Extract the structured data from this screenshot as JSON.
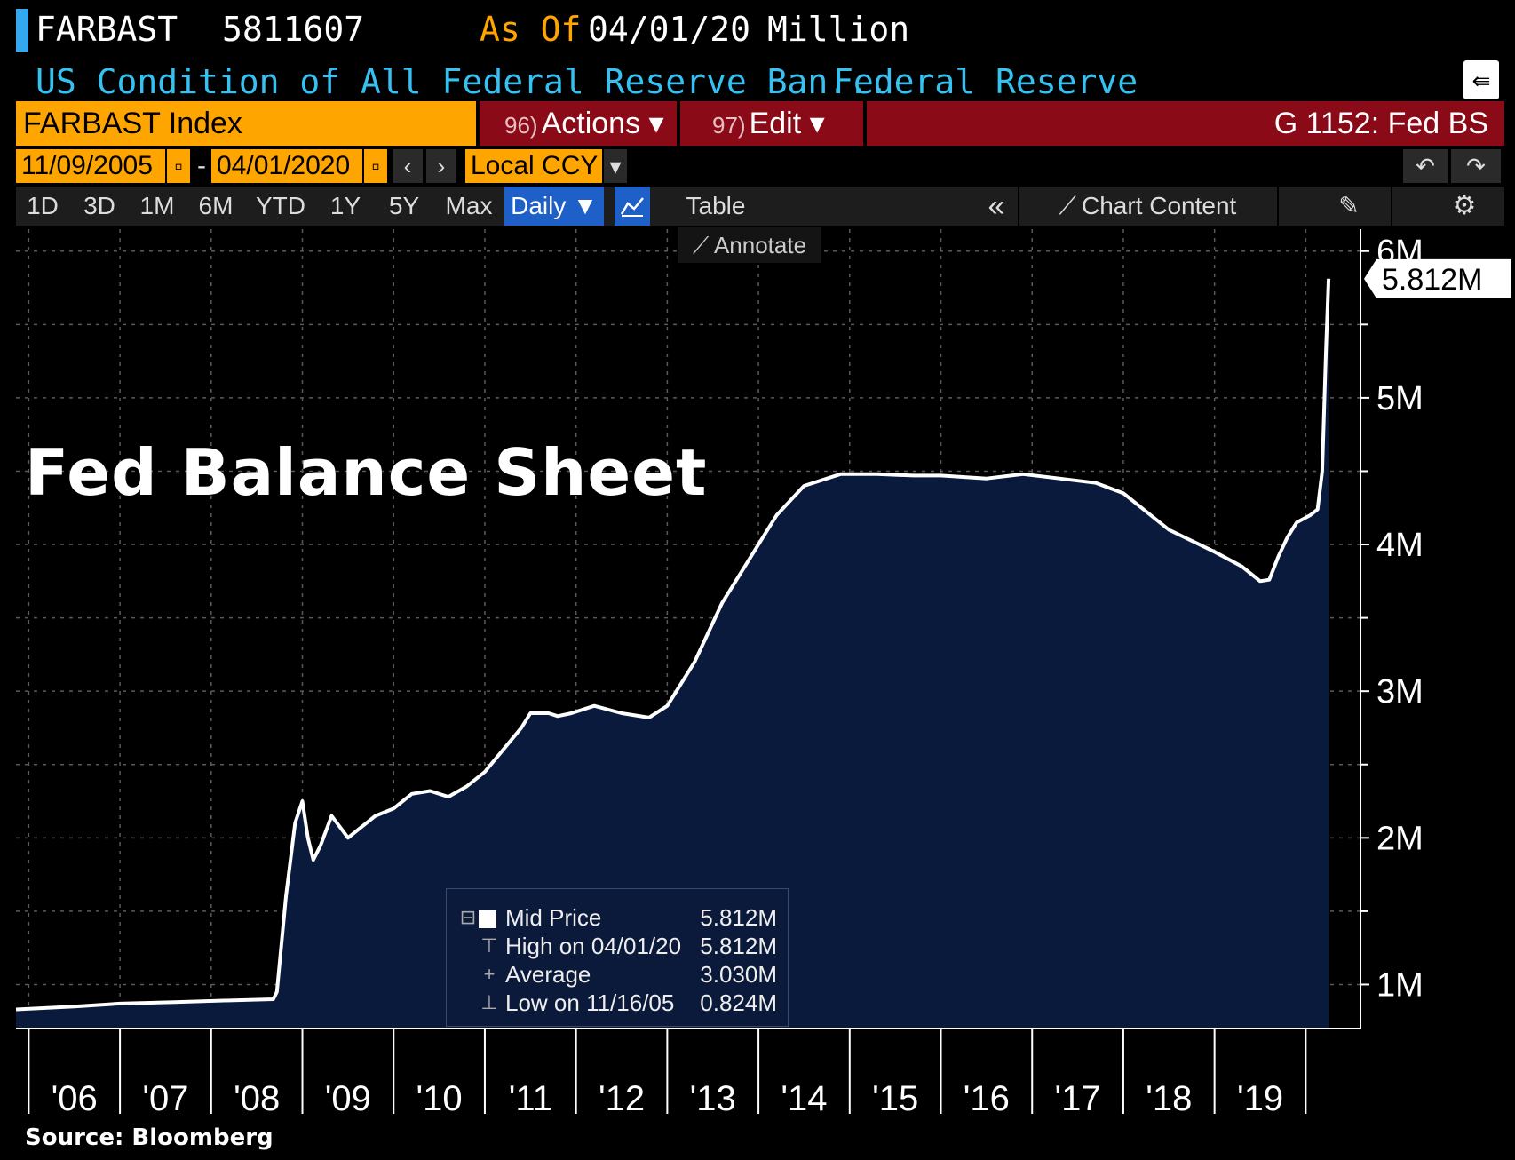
{
  "header": {
    "ticker": "FARBAST",
    "value": "5811607",
    "as_of_label": "As Of",
    "as_of_date": "04/01/20",
    "units": "Million",
    "description": "US Condition of All Federal Reserve Ban...",
    "source_name": "Federal Reserve"
  },
  "toolbar": {
    "security_field": "FARBAST Index",
    "actions_num": "96)",
    "actions_label": "Actions ▾",
    "edit_num": "97)",
    "edit_label": "Edit ▾",
    "chart_title": "G 1152: Fed BS",
    "start_date": "11/09/2005",
    "date_sep": "-",
    "end_date": "04/01/2020",
    "currency": "Local CCY",
    "ranges": [
      "1D",
      "3D",
      "1M",
      "6M",
      "YTD",
      "1Y",
      "5Y",
      "Max"
    ],
    "frequency": "Daily ▼",
    "table_label": "Table",
    "chart_content_label": "Chart Content",
    "annotate_label": "Annotate"
  },
  "legend": {
    "rows": [
      {
        "label": "Mid Price",
        "value": "5.812M"
      },
      {
        "label": "High on 04/01/20",
        "value": "5.812M"
      },
      {
        "label": "Average",
        "value": "3.030M"
      },
      {
        "label": "Low on 11/16/05",
        "value": "0.824M"
      }
    ]
  },
  "chart_data": {
    "type": "area",
    "title": "Fed Balance Sheet",
    "xlabel": "",
    "ylabel": "",
    "last_value_label": "5.812M",
    "x_tick_labels": [
      "'06",
      "'07",
      "'08",
      "'09",
      "'10",
      "'11",
      "'12",
      "'13",
      "'14",
      "'15",
      "'16",
      "'17",
      "'18",
      "'19"
    ],
    "y_tick_labels": [
      "1M",
      "2M",
      "3M",
      "4M",
      "5M",
      "6M"
    ],
    "y_tick_values": [
      1,
      2,
      3,
      4,
      5,
      6
    ],
    "xlim": [
      2005.86,
      2020.6
    ],
    "ylim": [
      0.7,
      6.15
    ],
    "series": [
      {
        "x": [
          2005.86,
          2006.5,
          2007.0,
          2007.6,
          2008.1,
          2008.68,
          2008.72,
          2008.82,
          2008.92,
          2009.0,
          2009.06,
          2009.12,
          2009.2,
          2009.32,
          2009.38,
          2009.5,
          2009.6,
          2009.8,
          2010.0,
          2010.2,
          2010.4,
          2010.6,
          2010.8,
          2011.0,
          2011.2,
          2011.4,
          2011.5,
          2011.7,
          2011.8,
          2011.95,
          2012.2,
          2012.5,
          2012.8,
          2013.0,
          2013.3,
          2013.6,
          2013.9,
          2014.2,
          2014.5,
          2014.9,
          2015.3,
          2015.7,
          2016.0,
          2016.5,
          2016.9,
          2017.3,
          2017.7,
          2018.0,
          2018.5,
          2019.0,
          2019.3,
          2019.5,
          2019.6,
          2019.7,
          2019.8,
          2019.9,
          2020.05,
          2020.13,
          2020.18,
          2020.22,
          2020.25
        ],
        "y": [
          0.83,
          0.85,
          0.87,
          0.88,
          0.89,
          0.9,
          0.95,
          1.6,
          2.1,
          2.25,
          2.0,
          1.85,
          1.95,
          2.15,
          2.1,
          2.0,
          2.05,
          2.15,
          2.2,
          2.3,
          2.32,
          2.28,
          2.35,
          2.45,
          2.6,
          2.75,
          2.85,
          2.85,
          2.83,
          2.85,
          2.9,
          2.85,
          2.82,
          2.9,
          3.2,
          3.6,
          3.9,
          4.2,
          4.4,
          4.48,
          4.48,
          4.47,
          4.47,
          4.45,
          4.48,
          4.45,
          4.42,
          4.35,
          4.1,
          3.95,
          3.85,
          3.75,
          3.76,
          3.92,
          4.05,
          4.15,
          4.2,
          4.24,
          4.5,
          5.3,
          5.812
        ]
      }
    ]
  }
}
